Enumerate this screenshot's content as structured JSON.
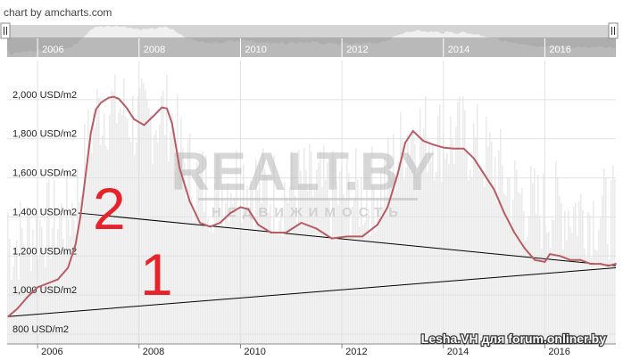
{
  "credit": "chart by amcharts.com",
  "watermark": {
    "logo": "REALT.BY",
    "sub": "НЕДВИЖИМОСТЬ"
  },
  "signature": "Lesha.VH для forum.onliner.by",
  "annotations": {
    "label_1": "1",
    "label_2": "2"
  },
  "colors": {
    "price_line": "#b85c64",
    "volume_area": "#ebebeb",
    "navigator_bg": "#d4d4d4",
    "navigator_fill": "#f0f0f0",
    "navigator_bar": "#8c8c8c",
    "annotation_red": "#e6222a",
    "trend_line": "#000000",
    "watermark": "#c7c7c7"
  },
  "scrollbar": {
    "left_handle_icon": "drag-handle-icon",
    "right_handle_icon": "drag-handle-icon"
  },
  "chart_data": {
    "type": "line",
    "title": "",
    "xlabel": "",
    "ylabel": "",
    "y_unit": "USD/m2",
    "xlim": [
      2005.4,
      2017.4
    ],
    "ylim": [
      750,
      2200
    ],
    "x_ticks": [
      2006,
      2008,
      2010,
      2012,
      2014,
      2016
    ],
    "x_tick_labels": [
      "2006",
      "2008",
      "2010",
      "2012",
      "2014",
      "2016"
    ],
    "y_ticks": [
      800,
      1000,
      1200,
      1400,
      1600,
      1800,
      2000
    ],
    "y_tick_labels": [
      "800 USD/m2",
      "1,000 USD/m2",
      "1,200 USD/m2",
      "1,400 USD/m2",
      "1,600 USD/m2",
      "1,800 USD/m2",
      "2,000 USD/m2"
    ],
    "grid": true,
    "series": [
      {
        "x": [
          2005.42,
          2005.6,
          2005.8,
          2006.0,
          2006.2,
          2006.4,
          2006.6,
          2006.75,
          2006.85,
          2006.95,
          2007.05,
          2007.15,
          2007.25,
          2007.4,
          2007.5,
          2007.6,
          2007.75,
          2007.9,
          2008.1,
          2008.3,
          2008.45,
          2008.55,
          2008.65,
          2008.8,
          2009.0,
          2009.2,
          2009.4,
          2009.6,
          2009.8,
          2010.0,
          2010.15,
          2010.35,
          2010.6,
          2010.9,
          2011.2,
          2011.5,
          2011.8,
          2012.1,
          2012.4,
          2012.7,
          2012.9,
          2013.1,
          2013.25,
          2013.4,
          2013.6,
          2013.8,
          2014.0,
          2014.2,
          2014.4,
          2014.6,
          2014.8,
          2015.0,
          2015.2,
          2015.4,
          2015.6,
          2015.8,
          2016.0,
          2016.1,
          2016.3,
          2016.5,
          2016.7,
          2016.9,
          2017.1,
          2017.25,
          2017.4
        ],
        "values": [
          890,
          930,
          990,
          1040,
          1060,
          1080,
          1140,
          1260,
          1410,
          1620,
          1830,
          1950,
          1985,
          2010,
          2015,
          2005,
          1960,
          1900,
          1870,
          1920,
          1960,
          1955,
          1880,
          1650,
          1480,
          1370,
          1350,
          1370,
          1420,
          1450,
          1440,
          1360,
          1320,
          1320,
          1370,
          1340,
          1290,
          1300,
          1300,
          1360,
          1450,
          1620,
          1780,
          1840,
          1790,
          1770,
          1755,
          1750,
          1750,
          1700,
          1620,
          1540,
          1420,
          1320,
          1240,
          1180,
          1170,
          1210,
          1200,
          1180,
          1180,
          1160,
          1160,
          1150,
          1160
        ]
      }
    ],
    "trend_lines": [
      {
        "label": "1",
        "x": [
          2005.42,
          2017.4
        ],
        "values": [
          890,
          1140
        ]
      },
      {
        "label": "2",
        "x": [
          2006.8,
          2017.4
        ],
        "values": [
          1420,
          1150
        ]
      }
    ],
    "navigator": {
      "x_ticks": [
        2006,
        2008,
        2010,
        2012,
        2014,
        2016
      ],
      "x_tick_labels": [
        "2006",
        "2008",
        "2010",
        "2012",
        "2014",
        "2016"
      ]
    }
  }
}
